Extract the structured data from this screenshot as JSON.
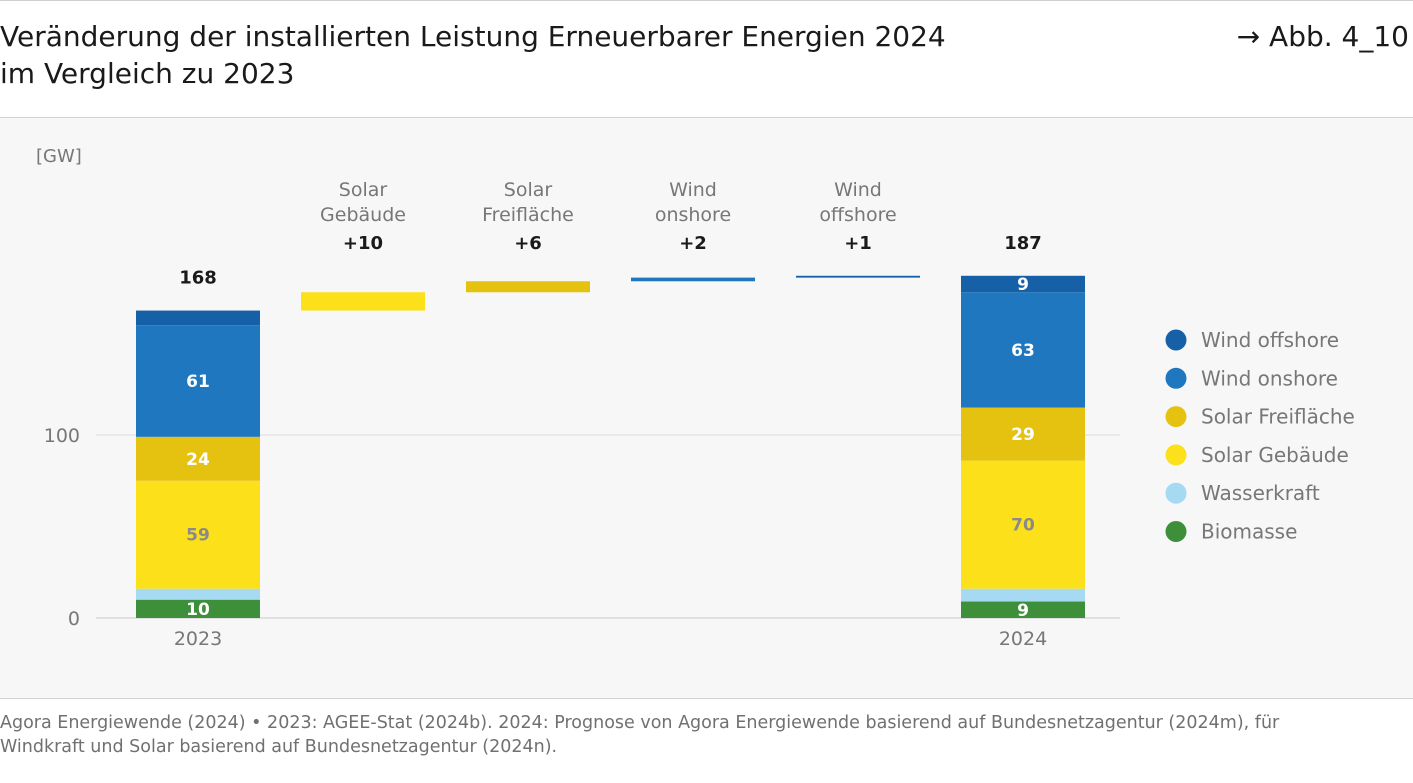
{
  "header": {
    "title_line1": "Veränderung der installierten Leistung Erneuerbarer Energien 2024",
    "title_line2": "im Vergleich zu 2023",
    "figure_ref": "→ Abb. 4_10"
  },
  "footer": {
    "line1": "Agora Energiewende (2024) • 2023: AGEE-Stat (2024b). 2024: Prognose von Agora Energiewende basierend auf Bundesnetzagentur (2024m), für",
    "line2": "Windkraft und Solar basierend auf Bundesnetzagentur (2024n)."
  },
  "colors": {
    "wind_offshore": "#1560a6",
    "wind_onshore": "#1f78bf",
    "solar_freiflaeche": "#e6c210",
    "solar_gebaeude": "#fce01a",
    "wasserkraft": "#a6d9f2",
    "biomasse": "#3d8f3a",
    "panel_bg": "#f6f7f6",
    "grid": "#dcdcdc",
    "axis_text": "#777777"
  },
  "chart_data": {
    "type": "bar",
    "subtype": "waterfall-stacked",
    "title": "Veränderung der installierten Leistung Erneuerbarer Energien 2024 im Vergleich zu 2023",
    "ylabel": "[GW]",
    "ylim": [
      0,
      205
    ],
    "yticks": [
      0,
      100
    ],
    "grid": "horizontal",
    "legend_placement": "right",
    "stack_order": [
      "Biomasse",
      "Wasserkraft",
      "Solar Gebäude",
      "Solar Freifläche",
      "Wind onshore",
      "Wind offshore"
    ],
    "legend": [
      {
        "name": "Wind offshore",
        "color_key": "wind_offshore"
      },
      {
        "name": "Wind onshore",
        "color_key": "wind_onshore"
      },
      {
        "name": "Solar Freifläche",
        "color_key": "solar_freiflaeche"
      },
      {
        "name": "Solar Gebäude",
        "color_key": "solar_gebaeude"
      },
      {
        "name": "Wasserkraft",
        "color_key": "wasserkraft"
      },
      {
        "name": "Biomasse",
        "color_key": "biomasse"
      }
    ],
    "totals": [
      {
        "category": "2023",
        "total": 168,
        "total_label": "168",
        "segments": [
          {
            "name": "Biomasse",
            "color_key": "biomasse",
            "value": 10,
            "label": "10",
            "label_color": "#ffffff"
          },
          {
            "name": "Wasserkraft",
            "color_key": "wasserkraft",
            "value": 6,
            "label": "",
            "label_color": "#ffffff"
          },
          {
            "name": "Solar Gebäude",
            "color_key": "solar_gebaeude",
            "value": 59,
            "label": "59",
            "label_color": "#8a8a8a"
          },
          {
            "name": "Solar Freifläche",
            "color_key": "solar_freiflaeche",
            "value": 24,
            "label": "24",
            "label_color": "#ffffff"
          },
          {
            "name": "Wind onshore",
            "color_key": "wind_onshore",
            "value": 61,
            "label": "61",
            "label_color": "#ffffff"
          },
          {
            "name": "Wind offshore",
            "color_key": "wind_offshore",
            "value": 8,
            "label": "",
            "label_color": "#ffffff"
          }
        ]
      },
      {
        "category": "2024",
        "total": 187,
        "total_label": "187",
        "segments": [
          {
            "name": "Biomasse",
            "color_key": "biomasse",
            "value": 9,
            "label": "9",
            "label_color": "#ffffff"
          },
          {
            "name": "Wasserkraft",
            "color_key": "wasserkraft",
            "value": 7,
            "label": "",
            "label_color": "#ffffff"
          },
          {
            "name": "Solar Gebäude",
            "color_key": "solar_gebaeude",
            "value": 70,
            "label": "70",
            "label_color": "#8a8a8a"
          },
          {
            "name": "Solar Freifläche",
            "color_key": "solar_freiflaeche",
            "value": 29,
            "label": "29",
            "label_color": "#ffffff"
          },
          {
            "name": "Wind onshore",
            "color_key": "wind_onshore",
            "value": 63,
            "label": "63",
            "label_color": "#ffffff"
          },
          {
            "name": "Wind offshore",
            "color_key": "wind_offshore",
            "value": 9,
            "label": "9",
            "label_color": "#ffffff"
          }
        ]
      }
    ],
    "changes": [
      {
        "name_line1": "Solar",
        "name_line2": "Gebäude",
        "value": 10,
        "label": "+10",
        "start": 168,
        "color_key": "solar_gebaeude"
      },
      {
        "name_line1": "Solar",
        "name_line2": "Freifläche",
        "value": 6,
        "label": "+6",
        "start": 178,
        "color_key": "solar_freiflaeche"
      },
      {
        "name_line1": "Wind",
        "name_line2": "onshore",
        "value": 2,
        "label": "+2",
        "start": 184,
        "color_key": "wind_onshore"
      },
      {
        "name_line1": "Wind",
        "name_line2": "offshore",
        "value": 1,
        "label": "+1",
        "start": 186,
        "color_key": "wind_offshore"
      }
    ]
  }
}
